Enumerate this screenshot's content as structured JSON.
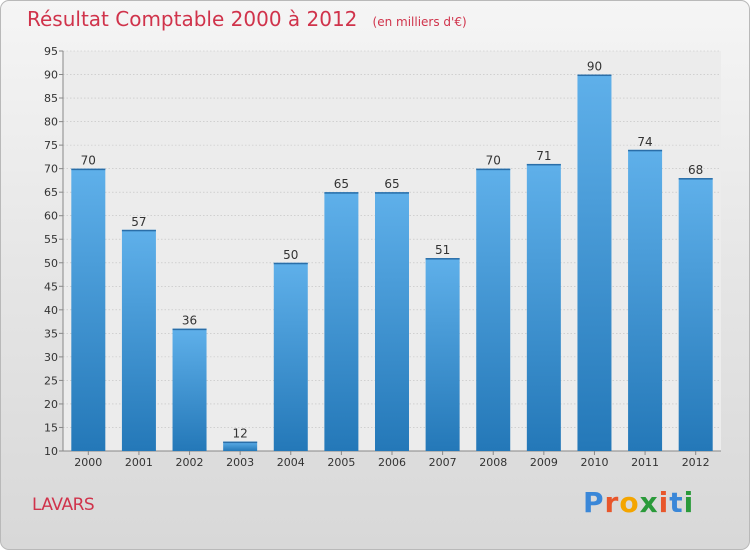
{
  "header": {
    "title": "Résultat Comptable 2000 à 2012",
    "unit": "(en milliers d'€)"
  },
  "footer": {
    "commune": "LAVARS",
    "logo": [
      "P",
      "r",
      "o",
      "x",
      "i",
      "t",
      "i"
    ]
  },
  "colors": {
    "title": "#d0334b",
    "bar_top": "#5fb0ea",
    "bar_bottom": "#2478b8",
    "axis_text": "#333333"
  },
  "chart_data": {
    "type": "bar",
    "title": "Résultat Comptable 2000 à 2012",
    "subtitle": "(en milliers d'€)",
    "xlabel": "",
    "ylabel": "",
    "categories": [
      "2000",
      "2001",
      "2002",
      "2003",
      "2004",
      "2005",
      "2006",
      "2007",
      "2008",
      "2009",
      "2010",
      "2011",
      "2012"
    ],
    "values": [
      70,
      57,
      36,
      12,
      50,
      65,
      65,
      51,
      70,
      71,
      90,
      74,
      68
    ],
    "ylim": [
      10,
      95
    ],
    "yticks": [
      10,
      15,
      20,
      25,
      30,
      35,
      40,
      45,
      50,
      55,
      60,
      65,
      70,
      75,
      80,
      85,
      90,
      95
    ],
    "grid": true,
    "legend": "none"
  }
}
